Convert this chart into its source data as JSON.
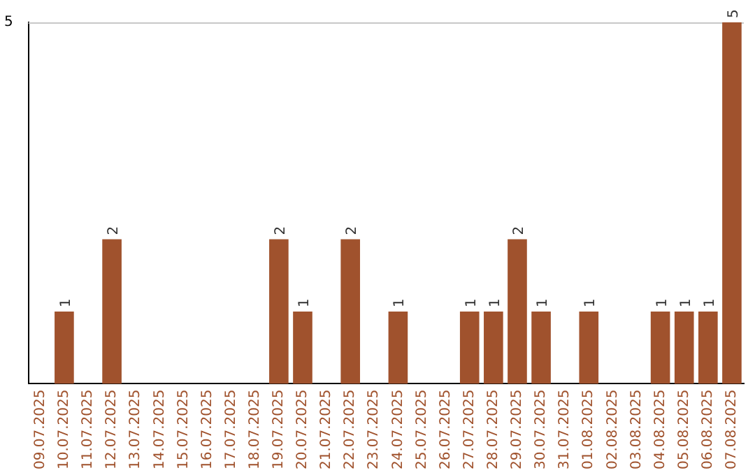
{
  "chart_data": {
    "type": "bar",
    "categories": [
      "09.07.2025",
      "10.07.2025",
      "11.07.2025",
      "12.07.2025",
      "13.07.2025",
      "14.07.2025",
      "15.07.2025",
      "16.07.2025",
      "17.07.2025",
      "18.07.2025",
      "19.07.2025",
      "20.07.2025",
      "21.07.2025",
      "22.07.2025",
      "23.07.2025",
      "24.07.2025",
      "25.07.2025",
      "26.07.2025",
      "27.07.2025",
      "28.07.2025",
      "29.07.2025",
      "30.07.2025",
      "31.07.2025",
      "01.08.2025",
      "02.08.2025",
      "03.08.2025",
      "04.08.2025",
      "05.08.2025",
      "06.08.2025",
      "07.08.2025"
    ],
    "values": [
      0,
      1,
      0,
      2,
      0,
      0,
      0,
      0,
      0,
      0,
      2,
      1,
      0,
      2,
      0,
      1,
      0,
      0,
      1,
      1,
      2,
      1,
      0,
      1,
      0,
      0,
      1,
      1,
      1,
      5
    ],
    "value_labels": [
      null,
      "1",
      null,
      "2",
      null,
      null,
      null,
      null,
      null,
      null,
      "2",
      "1",
      null,
      "2",
      null,
      "1",
      null,
      null,
      "1",
      "1",
      "2",
      "1",
      null,
      "1",
      null,
      null,
      "1",
      "1",
      "1",
      "5"
    ],
    "color": "#a0522d",
    "ylim": [
      0,
      5
    ],
    "yticks": [
      5
    ],
    "legend": false
  }
}
